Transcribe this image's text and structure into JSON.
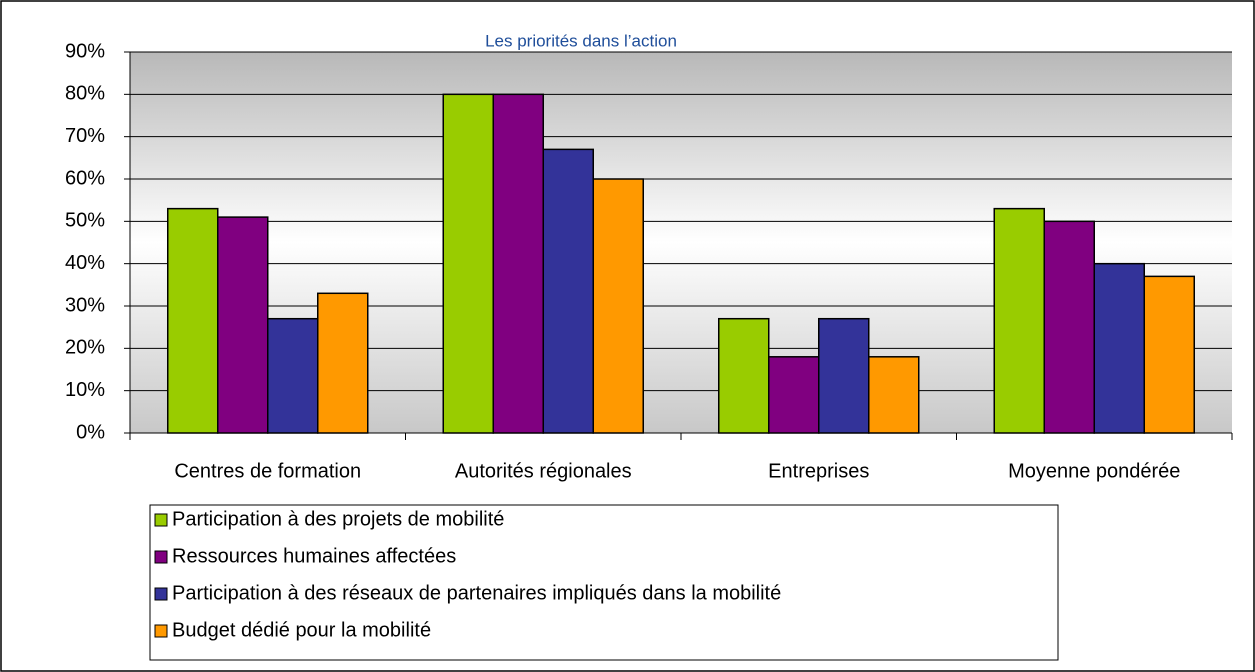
{
  "chart_data": {
    "type": "bar",
    "title": "Les priorités dans l’action",
    "categories": [
      "Centres de formation",
      "Autorités régionales",
      "Entreprises",
      "Moyenne pondérée"
    ],
    "series": [
      {
        "name": "Participation à des projets de mobilité",
        "color": "#99cc00",
        "values": [
          53,
          80,
          27,
          53
        ]
      },
      {
        "name": "Ressources humaines affectées",
        "color": "#800080",
        "values": [
          51,
          80,
          18,
          50
        ]
      },
      {
        "name": "Participation à des réseaux de partenaires impliqués dans la mobilité",
        "color": "#333399",
        "values": [
          27,
          67,
          27,
          40
        ]
      },
      {
        "name": "Budget dédié pour la mobilité",
        "color": "#ff9900",
        "values": [
          33,
          60,
          18,
          37
        ]
      }
    ],
    "ylim": [
      0,
      90
    ],
    "yticks": [
      {
        "value": 0,
        "label": "0%"
      },
      {
        "value": 10,
        "label": "10%"
      },
      {
        "value": 20,
        "label": "20%"
      },
      {
        "value": 30,
        "label": "30%"
      },
      {
        "value": 40,
        "label": "40%"
      },
      {
        "value": 50,
        "label": "50%"
      },
      {
        "value": 60,
        "label": "60%"
      },
      {
        "value": 70,
        "label": "70%"
      },
      {
        "value": 80,
        "label": "80%"
      },
      {
        "value": 90,
        "label": "90%"
      }
    ],
    "grid": true,
    "legend": "bottom"
  }
}
